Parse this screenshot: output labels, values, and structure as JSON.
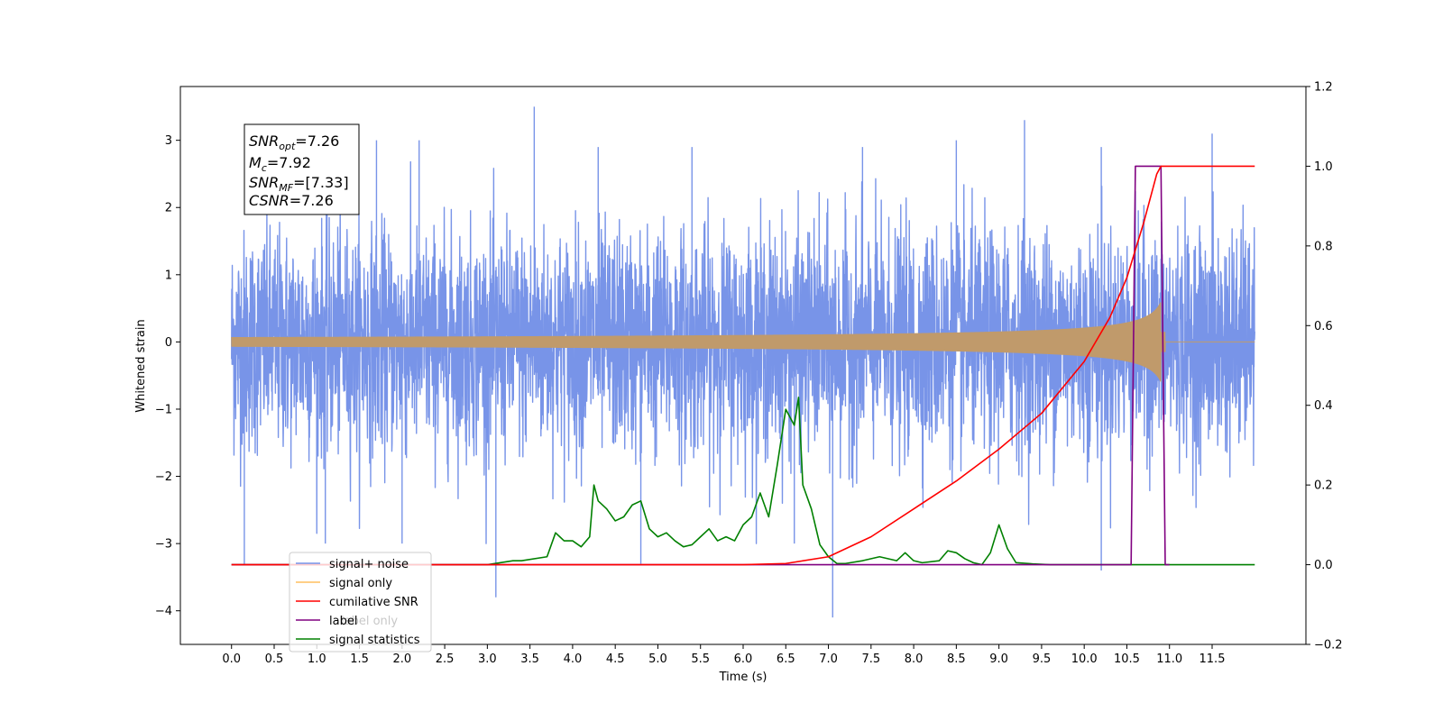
{
  "chart_data": {
    "type": "line",
    "xlabel": "Time (s)",
    "ylabel_left": "Whitened strain",
    "ylabel_right": "",
    "xlim": [
      -0.6,
      12.6
    ],
    "ylim_left": [
      -4.5,
      3.8
    ],
    "ylim_right": [
      -0.2,
      1.2
    ],
    "x_ticks": [
      0.0,
      0.5,
      1.0,
      1.5,
      2.0,
      2.5,
      3.0,
      3.5,
      4.0,
      4.5,
      5.0,
      5.5,
      6.0,
      6.5,
      7.0,
      7.5,
      8.0,
      8.5,
      9.0,
      9.5,
      10.0,
      10.5,
      11.0,
      11.5
    ],
    "x_tick_labels": [
      "0.0",
      "0.5",
      "1.0",
      "1.5",
      "2.0",
      "2.5",
      "3.0",
      "3.5",
      "4.0",
      "4.5",
      "5.0",
      "5.5",
      "6.0",
      "6.5",
      "7.0",
      "7.5",
      "8.0",
      "8.5",
      "9.0",
      "9.5",
      "10.0",
      "10.5",
      "11.0",
      "11.5"
    ],
    "y_left_ticks": [
      -4,
      -3,
      -2,
      -1,
      0,
      1,
      2,
      3
    ],
    "y_left_tick_labels": [
      "−4",
      "−3",
      "−2",
      "−1",
      "0",
      "1",
      "2",
      "3"
    ],
    "y_right_ticks": [
      -0.2,
      0.0,
      0.2,
      0.4,
      0.6,
      0.8,
      1.0,
      1.2
    ],
    "y_right_tick_labels": [
      "−0.2",
      "0.0",
      "0.2",
      "0.4",
      "0.6",
      "0.8",
      "1.0",
      "1.2"
    ],
    "grid": false,
    "legend_position": "bottom-left",
    "annotation": {
      "lines": [
        {
          "base": "SNR",
          "sub": "opt",
          "text": "=7.26"
        },
        {
          "base": "M",
          "sub": "c",
          "text": "=7.92"
        },
        {
          "base": "SNR",
          "sub": "MF",
          "text": "=[7.33]"
        },
        {
          "base": "CSNR",
          "sub": "",
          "text": "=7.26"
        }
      ]
    },
    "series": [
      {
        "name": "signal+ noise",
        "axis": "left",
        "color": "#7894e8",
        "style": "noise",
        "x_range": [
          0.0,
          12.0
        ],
        "envelope_typical": 1.8,
        "peaks": [
          {
            "x": 3.55,
            "y": 3.5
          },
          {
            "x": 9.3,
            "y": 3.3
          },
          {
            "x": 11.5,
            "y": 3.1
          },
          {
            "x": 1.7,
            "y": 3.0
          },
          {
            "x": 2.2,
            "y": 3.0
          },
          {
            "x": 4.3,
            "y": 2.9
          },
          {
            "x": 5.4,
            "y": 2.9
          },
          {
            "x": 7.4,
            "y": 2.9
          },
          {
            "x": 8.5,
            "y": 3.0
          },
          {
            "x": 10.2,
            "y": 2.9
          },
          {
            "x": 7.05,
            "y": -4.1
          },
          {
            "x": 3.1,
            "y": -3.8
          },
          {
            "x": 10.2,
            "y": -3.4
          },
          {
            "x": 0.15,
            "y": -3.3
          },
          {
            "x": 4.8,
            "y": -3.3
          },
          {
            "x": 1.1,
            "y": -3.0
          },
          {
            "x": 2.0,
            "y": -3.0
          },
          {
            "x": 6.6,
            "y": -3.0
          }
        ]
      },
      {
        "name": "signal only",
        "axis": "left",
        "color": "#ffbf5f",
        "style": "chirp",
        "x_range": [
          0.0,
          12.0
        ],
        "merger_time": 10.9,
        "peak_amplitude": 0.6
      },
      {
        "name": "cumilative SNR",
        "axis": "right",
        "color": "#ff0000",
        "x": [
          0.0,
          6.0,
          6.5,
          7.0,
          7.5,
          8.0,
          8.5,
          9.0,
          9.5,
          10.0,
          10.3,
          10.5,
          10.7,
          10.85,
          10.9,
          12.0
        ],
        "y": [
          0.0,
          0.0,
          0.003,
          0.02,
          0.07,
          0.14,
          0.21,
          0.29,
          0.38,
          0.51,
          0.62,
          0.72,
          0.86,
          0.98,
          1.0,
          1.0
        ]
      },
      {
        "name": "label",
        "axis": "right",
        "color": "#800080",
        "x": [
          0.0,
          10.55,
          10.6,
          10.9,
          10.95,
          11.0
        ],
        "y": [
          0.0,
          0.0,
          1.0,
          1.0,
          0.0,
          0.0
        ]
      },
      {
        "name": "label only",
        "axis": "right",
        "color": "#d8b8d8",
        "x": [],
        "y": []
      },
      {
        "name": "signal statistics",
        "axis": "right",
        "color": "#008000",
        "x": [
          0.0,
          3.0,
          3.3,
          3.4,
          3.7,
          3.8,
          3.85,
          3.9,
          4.0,
          4.1,
          4.2,
          4.25,
          4.3,
          4.4,
          4.5,
          4.6,
          4.7,
          4.8,
          4.9,
          5.0,
          5.1,
          5.2,
          5.3,
          5.4,
          5.5,
          5.6,
          5.7,
          5.8,
          5.9,
          6.0,
          6.1,
          6.2,
          6.3,
          6.4,
          6.5,
          6.6,
          6.65,
          6.7,
          6.8,
          6.9,
          7.0,
          7.1,
          7.2,
          7.4,
          7.6,
          7.8,
          7.9,
          8.0,
          8.1,
          8.3,
          8.4,
          8.5,
          8.6,
          8.7,
          8.8,
          8.9,
          9.0,
          9.1,
          9.2,
          9.4,
          9.6,
          9.8,
          12.0
        ],
        "y": [
          0.0,
          0.0,
          0.01,
          0.01,
          0.02,
          0.08,
          0.07,
          0.06,
          0.06,
          0.045,
          0.07,
          0.2,
          0.16,
          0.14,
          0.11,
          0.12,
          0.15,
          0.16,
          0.09,
          0.07,
          0.08,
          0.06,
          0.045,
          0.05,
          0.07,
          0.09,
          0.06,
          0.07,
          0.06,
          0.1,
          0.12,
          0.18,
          0.12,
          0.25,
          0.39,
          0.35,
          0.42,
          0.2,
          0.14,
          0.05,
          0.02,
          0.003,
          0.003,
          0.01,
          0.02,
          0.01,
          0.03,
          0.01,
          0.005,
          0.01,
          0.035,
          0.03,
          0.015,
          0.005,
          0.0,
          0.03,
          0.1,
          0.04,
          0.005,
          0.002,
          0.0,
          0.0,
          0.0
        ]
      }
    ]
  }
}
